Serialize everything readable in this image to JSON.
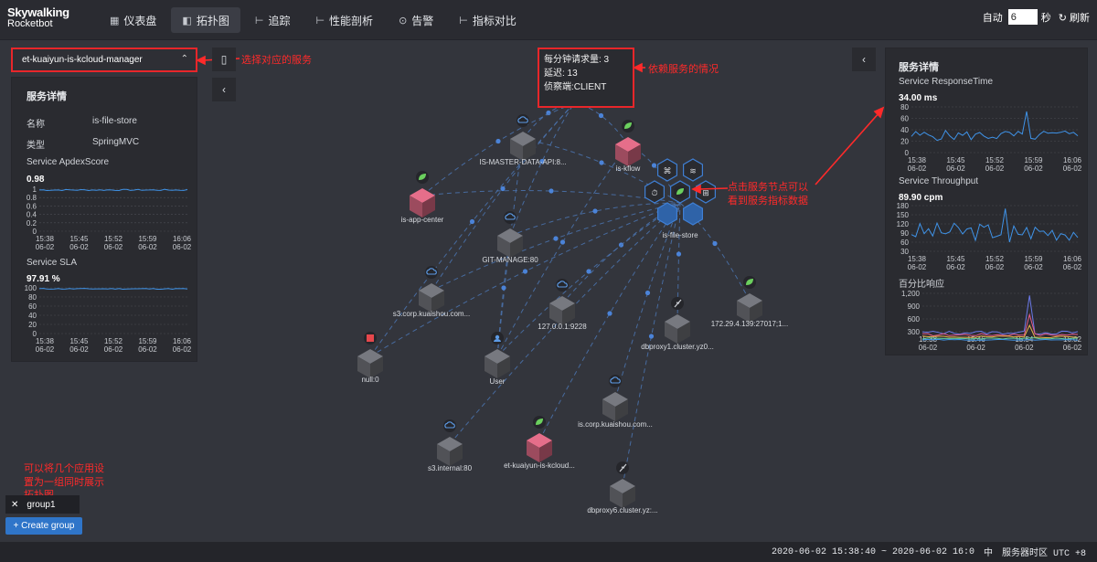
{
  "header": {
    "logo_top": "Skywalking",
    "logo_bottom": "Rocketbot",
    "nav": [
      {
        "icon": "▦",
        "label": "仪表盘"
      },
      {
        "icon": "◧",
        "label": "拓扑图"
      },
      {
        "icon": "⊢",
        "label": "追踪"
      },
      {
        "icon": "⊢",
        "label": "性能剖析"
      },
      {
        "icon": "⊙",
        "label": "告警"
      },
      {
        "icon": "⊢",
        "label": "指标对比"
      }
    ],
    "auto_label": "自动",
    "interval_value": "6",
    "seconds_label": "秒",
    "refresh_label": "刷新"
  },
  "service_select": {
    "value": "et-kuaiyun-is-kcloud-manager"
  },
  "left_panel": {
    "title": "服务详情",
    "name_label": "名称",
    "name_value": "is-file-store",
    "type_label": "类型",
    "type_value": "SpringMVC",
    "apdex_title": "Service ApdexScore",
    "apdex_value": "0.98",
    "apdex_ticks": [
      "1",
      "0.8",
      "0.6",
      "0.4",
      "0.2",
      "0"
    ],
    "sla_title": "Service SLA",
    "sla_value": "97.91 %",
    "sla_ticks": [
      "100",
      "80",
      "60",
      "40",
      "20",
      "0"
    ],
    "time_labels": [
      [
        "15:38",
        "06-02"
      ],
      [
        "15:45",
        "06-02"
      ],
      [
        "15:52",
        "06-02"
      ],
      [
        "15:59",
        "06-02"
      ],
      [
        "16:06",
        "06-02"
      ]
    ]
  },
  "right_panel": {
    "title": "服务详情",
    "rt_title": "Service ResponseTime",
    "rt_value": "34.00 ms",
    "rt_ticks": [
      "80",
      "60",
      "40",
      "20",
      "0"
    ],
    "tp_title": "Service Throughput",
    "tp_value": "89.90 cpm",
    "tp_ticks": [
      "180",
      "150",
      "120",
      "90",
      "60",
      "30"
    ],
    "pct_title": "百分比响应",
    "pct_ticks": [
      "1,200",
      "900",
      "600",
      "300"
    ],
    "time_labels": [
      [
        "15:38",
        "06-02"
      ],
      [
        "15:45",
        "06-02"
      ],
      [
        "15:52",
        "06-02"
      ],
      [
        "15:59",
        "06-02"
      ],
      [
        "16:06",
        "06-02"
      ]
    ],
    "pct_time_labels": [
      [
        "15:38",
        "06-02"
      ],
      [
        "15:46",
        "06-02"
      ],
      [
        "15:54",
        "06-02"
      ],
      [
        "16:02",
        "06-02"
      ]
    ]
  },
  "tooltip": {
    "line1": "每分钟请求量: 3",
    "line2": "延迟: 13",
    "line3": "侦察端:CLIENT"
  },
  "annotations": {
    "select_service": "选择对应的服务",
    "dependency": "依赖服务的情况",
    "click_node_1": "点击服务节点可以",
    "click_node_2": "看到服务指标数据",
    "group_note_1": "可以将几个应用设",
    "group_note_2": "置为一组同时展示",
    "group_note_3": "拓扑图"
  },
  "topology": {
    "nodes": [
      {
        "label": "IS-MASTER-DATA-API:8...",
        "color": "#5f6166",
        "badge": "cloud"
      },
      {
        "label": "is-kflow",
        "color": "#b8586e",
        "badge": "leaf"
      },
      {
        "label": "is-app-center",
        "color": "#b8586e",
        "badge": "leaf"
      },
      {
        "label": "GIT-MANAGE:80",
        "color": "#5f6166",
        "badge": "cloud"
      },
      {
        "label": "is-file-store",
        "color": "#3b6fb3",
        "badge": "leaf"
      },
      {
        "label": "s3.corp.kuaishou.com...",
        "color": "#5f6166",
        "badge": "cloud"
      },
      {
        "label": "127.0.0.1:9228",
        "color": "#5f6166",
        "badge": "cloud"
      },
      {
        "label": "dbproxy1.cluster.yz0...",
        "color": "#5f6166",
        "badge": "feather"
      },
      {
        "label": "172.29.4.139:27017;1...",
        "color": "#5f6166",
        "badge": "leafg"
      },
      {
        "label": "null:0",
        "color": "#5f6166",
        "badge": "stack"
      },
      {
        "label": "User",
        "color": "#5f6166",
        "badge": "user"
      },
      {
        "label": "is.corp.kuaishou.com...",
        "color": "#5f6166",
        "badge": "cloud"
      },
      {
        "label": "s3.internal:80",
        "color": "#5f6166",
        "badge": "cloud"
      },
      {
        "label": "et-kuaiyun-is-kcloud...",
        "color": "#b8586e",
        "badge": "leaf"
      },
      {
        "label": "dbproxy6.cluster.yz:...",
        "color": "#5f6166",
        "badge": "feather"
      }
    ]
  },
  "groups": {
    "chip": "group1",
    "create": "+ Create group"
  },
  "footer": {
    "time_range": "2020-06-02 15:38:40 ~ 2020-06-02 16:0",
    "lang": "中",
    "tz": "服务器时区 UTC +8"
  }
}
